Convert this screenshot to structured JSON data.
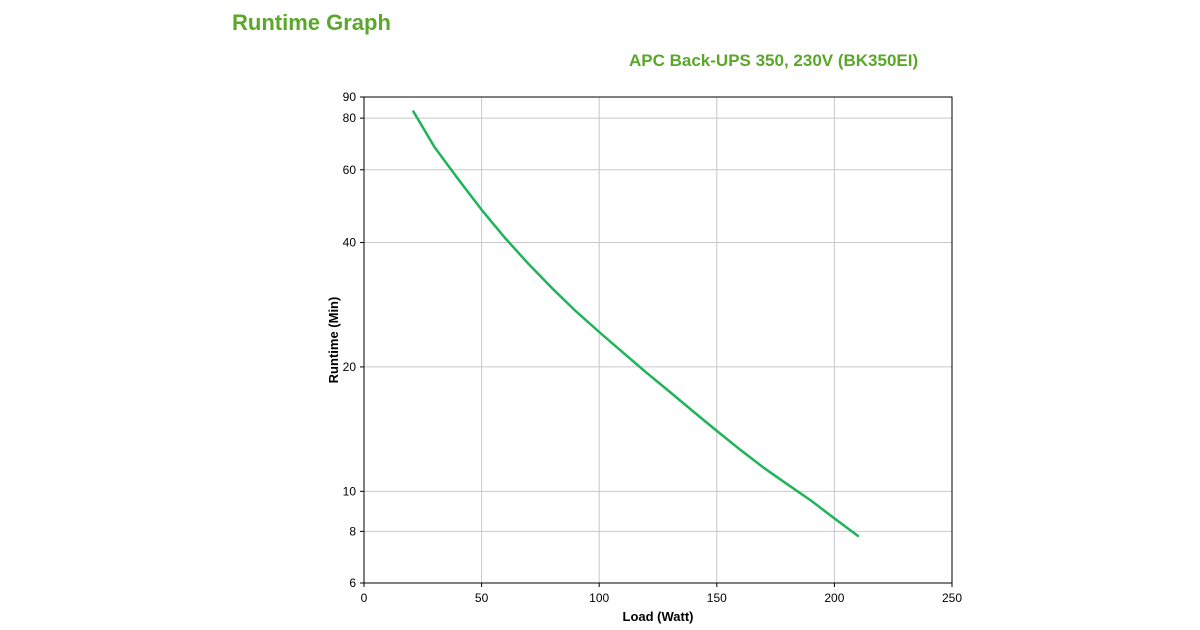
{
  "page": {
    "title": "Runtime Graph"
  },
  "chart_data": {
    "type": "line",
    "title": "APC Back-UPS 350, 230V (BK350EI)",
    "xlabel": "Load (Watt)",
    "ylabel": "Runtime (Min)",
    "xlim": [
      0,
      250
    ],
    "ylim": [
      6,
      90
    ],
    "yscale": "log",
    "xticks": [
      0,
      50,
      100,
      150,
      200,
      250
    ],
    "yticks": [
      6,
      8,
      10,
      20,
      40,
      60,
      80,
      90
    ],
    "grid": true,
    "colors": {
      "line": "#1fb45a",
      "grid": "#c8c8c8",
      "title": "#5aa72a"
    },
    "series": [
      {
        "x": [
          21,
          25,
          30,
          40,
          50,
          60,
          70,
          80,
          90,
          100,
          110,
          120,
          130,
          140,
          150,
          160,
          170,
          180,
          190,
          200,
          210
        ],
        "y": [
          83,
          76,
          68,
          57,
          48,
          41,
          35.5,
          31,
          27.3,
          24.3,
          21.7,
          19.4,
          17.4,
          15.6,
          14.0,
          12.6,
          11.4,
          10.4,
          9.5,
          8.6,
          7.8
        ]
      }
    ]
  }
}
